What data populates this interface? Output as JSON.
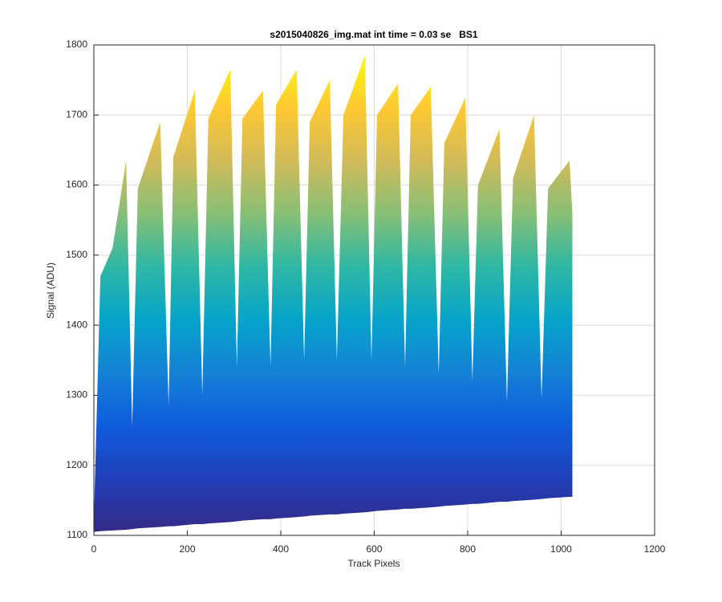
{
  "chart_data": {
    "type": "band",
    "title": "s2015040826_img.mat int time = 0.03 se   BS1",
    "xlabel": "Track Pixels",
    "ylabel": "Signal (ADU)",
    "x": [
      0,
      14,
      40,
      69,
      82,
      94,
      142,
      160,
      170,
      216,
      232,
      245,
      292,
      306,
      318,
      362,
      378,
      390,
      434,
      450,
      462,
      505,
      520,
      534,
      580,
      594,
      606,
      651,
      666,
      678,
      721,
      738,
      750,
      795,
      810,
      822,
      868,
      884,
      897,
      942,
      958,
      972,
      1018,
      1024
    ],
    "series": [
      {
        "values": [
          1120,
          1470,
          1510,
          1635,
          1255,
          1595,
          1690,
          1285,
          1640,
          1735,
          1300,
          1695,
          1765,
          1340,
          1695,
          1735,
          1340,
          1715,
          1765,
          1350,
          1690,
          1750,
          1350,
          1700,
          1785,
          1350,
          1700,
          1745,
          1340,
          1700,
          1740,
          1330,
          1660,
          1725,
          1320,
          1600,
          1680,
          1290,
          1610,
          1700,
          1295,
          1595,
          1635,
          1560
        ]
      },
      {
        "values": [
          1105,
          1106,
          1107,
          1108,
          1109,
          1110,
          1112,
          1113,
          1113,
          1116,
          1116,
          1117,
          1119,
          1120,
          1121,
          1123,
          1123,
          1124,
          1126,
          1127,
          1128,
          1130,
          1130,
          1131,
          1133,
          1134,
          1135,
          1137,
          1138,
          1138,
          1140,
          1141,
          1142,
          1144,
          1145,
          1145,
          1148,
          1148,
          1149,
          1151,
          1152,
          1153,
          1155,
          1155
        ]
      }
    ],
    "colormap": [
      "#352a87",
      "#1f3fb8",
      "#0f5cdd",
      "#1481d6",
      "#06a4ca",
      "#2eb7a4",
      "#87bf77",
      "#d1bb59",
      "#fec832",
      "#f9fb0e"
    ],
    "xlim": [
      0,
      1200
    ],
    "xticks": [
      0,
      200,
      400,
      600,
      800,
      1000,
      1200
    ],
    "ylim": [
      1100,
      1800
    ],
    "yticks": [
      1100,
      1200,
      1300,
      1400,
      1500,
      1600,
      1700,
      1800
    ],
    "grid": true
  }
}
